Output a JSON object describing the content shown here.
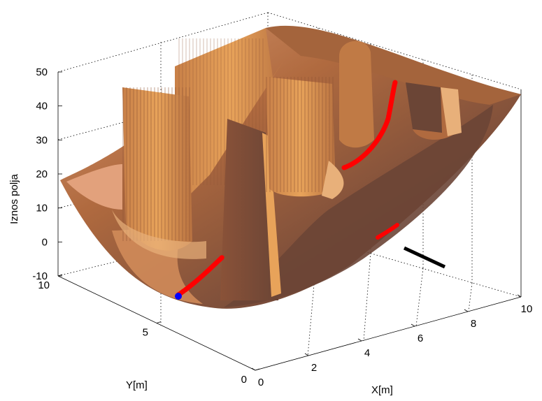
{
  "chart_data": {
    "type": "surface3d",
    "title": "",
    "xlabel": "X[m]",
    "ylabel": "Y[m]",
    "zlabel": "Iznos polja",
    "xlim": [
      0,
      10
    ],
    "ylim": [
      0,
      10
    ],
    "zlim": [
      -10,
      50
    ],
    "x_ticks": [
      "0",
      "2",
      "4",
      "6",
      "8",
      "10"
    ],
    "y_ticks": [
      "0",
      "5",
      "10"
    ],
    "z_ticks": [
      "-10",
      "0",
      "10",
      "20",
      "30",
      "40",
      "50"
    ],
    "grid": true,
    "colors": {
      "surface_dark": "#6b4536",
      "surface_mid": "#b06a3f",
      "surface_light": "#e8a35a",
      "path": "#ff0000",
      "start": "#0000ff",
      "goal": "#000000"
    },
    "obstacles": [
      {
        "x": 3.0,
        "y": 8.5,
        "z": 42
      },
      {
        "x": 3.5,
        "y": 6.0,
        "z": 44
      },
      {
        "x": 5.5,
        "y": 5.5,
        "z": 45
      },
      {
        "x": 5.0,
        "y": 3.5,
        "z": 43
      },
      {
        "x": 7.5,
        "y": 3.0,
        "z": 30
      }
    ],
    "path": [
      {
        "x": 0.3,
        "y": 9.5,
        "z": 0
      },
      {
        "x": 1.5,
        "y": 8.0,
        "z": 3
      },
      {
        "x": 3.5,
        "y": 7.0,
        "z": 8
      },
      {
        "x": 6.5,
        "y": 5.5,
        "z": 5
      },
      {
        "x": 8.5,
        "y": 4.0,
        "z": 6
      },
      {
        "x": 9.5,
        "y": 3.0,
        "z": 12
      }
    ],
    "start": {
      "x": 0.3,
      "y": 9.5,
      "z": 0
    },
    "goal": {
      "x": 8.8,
      "y": 2.0,
      "z": -5
    }
  }
}
